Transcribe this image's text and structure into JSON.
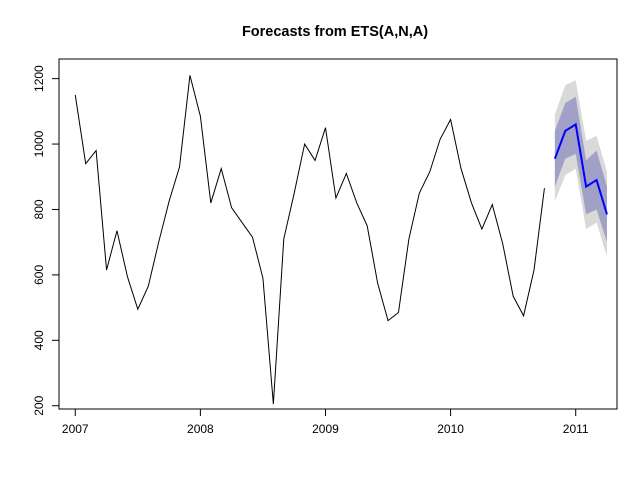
{
  "chart_data": {
    "type": "line",
    "title": "Forecasts from ETS(A,N,A)",
    "xlabel": "",
    "ylabel": "",
    "xlim": [
      2006.87,
      2011.33
    ],
    "ylim": [
      190,
      1260
    ],
    "x_ticks": [
      2007,
      2008,
      2009,
      2010,
      2011
    ],
    "y_ticks": [
      200,
      400,
      600,
      800,
      1000,
      1200
    ],
    "grid": false,
    "series": [
      {
        "role": "observed",
        "color": "#000000",
        "start": 2007.0,
        "frequency": 12,
        "values": [
          1150,
          940,
          980,
          615,
          735,
          595,
          495,
          565,
          700,
          825,
          930,
          1210,
          1085,
          820,
          925,
          805,
          760,
          715,
          590,
          205,
          710,
          850,
          1000,
          950,
          1050,
          835,
          910,
          820,
          750,
          575,
          460,
          485,
          710,
          850,
          915,
          1015,
          1075,
          925,
          820,
          740,
          815,
          695,
          535,
          475,
          615,
          865
        ]
      },
      {
        "role": "forecast",
        "color": "#0000ff",
        "start": 2010.8333,
        "frequency": 12,
        "values": [
          955,
          1040,
          1060,
          870,
          890,
          785
        ],
        "interval_80": {
          "color": "#a1a1c8",
          "lower": [
            870,
            955,
            970,
            785,
            800,
            700
          ],
          "upper": [
            1040,
            1125,
            1145,
            950,
            980,
            870
          ]
        },
        "interval_95": {
          "color": "#d9d9d9",
          "lower": [
            825,
            905,
            925,
            740,
            760,
            655
          ],
          "upper": [
            1090,
            1180,
            1195,
            1010,
            1025,
            915
          ]
        }
      }
    ]
  }
}
